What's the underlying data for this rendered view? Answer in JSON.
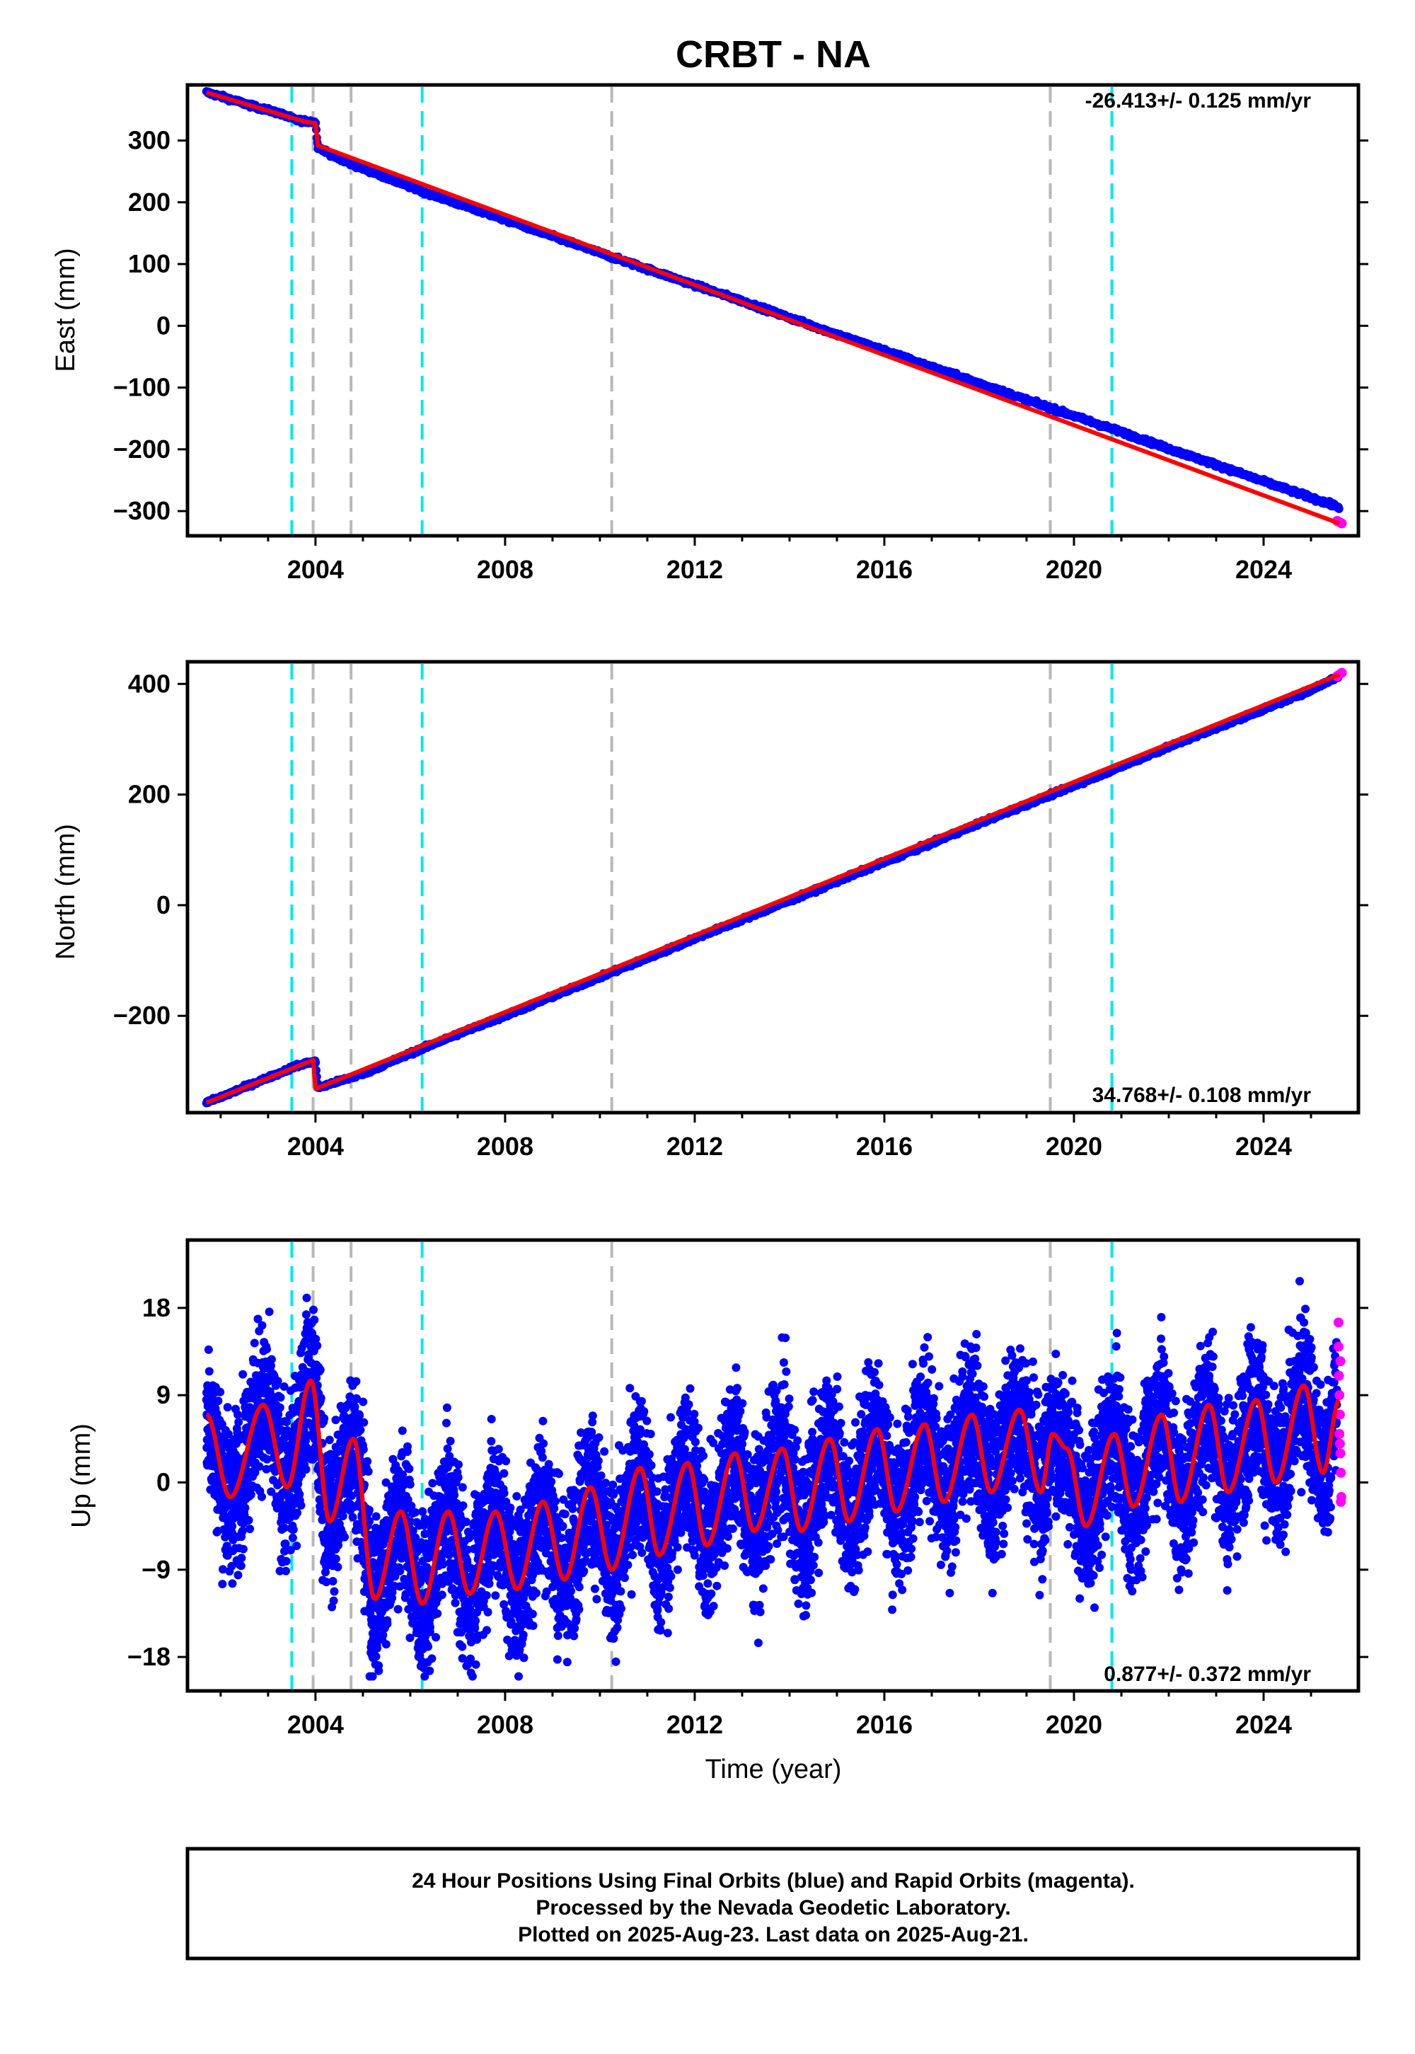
{
  "chart_data": [
    {
      "type": "scatter",
      "panel": "east",
      "title": "CRBT - NA",
      "ylabel": "East (mm)",
      "xlabel": "",
      "xlim": [
        2001.3,
        2026.0
      ],
      "ylim": [
        -340,
        390
      ],
      "x_ticks": [
        2004,
        2008,
        2012,
        2016,
        2020,
        2024
      ],
      "y_ticks": [
        300,
        200,
        100,
        0,
        -100,
        -200,
        -300
      ],
      "y_tick_labels": [
        "300",
        "200",
        "100",
        "0",
        "−100",
        "−200",
        "−300"
      ],
      "rate_label": "-26.413+/- 0.125 mm/yr",
      "rate_position": "top-right",
      "series": [
        {
          "role": "final_orbits",
          "color": "#0000ff",
          "x": [
            2001.7,
            2002.2,
            2002.7,
            2003.2,
            2003.6,
            2004.0,
            2004.05,
            2004.5,
            2005.0,
            2005.5,
            2006.0,
            2007.0,
            2008.0,
            2009.0,
            2010.0,
            2011.0,
            2012.0,
            2013.0,
            2014.0,
            2015.0,
            2016.0,
            2017.0,
            2018.0,
            2019.0,
            2020.0,
            2021.0,
            2022.0,
            2023.0,
            2024.0,
            2025.0,
            2025.6
          ],
          "y": [
            378,
            367,
            355,
            345,
            333,
            330,
            290,
            270,
            255,
            240,
            225,
            198,
            172,
            145,
            118,
            92,
            66,
            40,
            13,
            -14,
            -40,
            -67,
            -93,
            -120,
            -146,
            -172,
            -199,
            -225,
            -252,
            -278,
            -294
          ]
        },
        {
          "role": "rapid_orbits",
          "color": "#ff00ff",
          "x": [
            2025.55,
            2025.6,
            2025.65
          ],
          "y": [
            -316,
            -318,
            -320
          ]
        },
        {
          "role": "model_fit",
          "color": "#ff0000",
          "x": [
            2001.7,
            2003.8,
            2004.0,
            2004.05,
            2025.6
          ],
          "y": [
            378,
            330,
            328,
            292,
            -320
          ]
        }
      ]
    },
    {
      "type": "scatter",
      "panel": "north",
      "ylabel": "North (mm)",
      "xlabel": "",
      "xlim": [
        2001.3,
        2026.0
      ],
      "ylim": [
        -375,
        440
      ],
      "x_ticks": [
        2004,
        2008,
        2012,
        2016,
        2020,
        2024
      ],
      "y_ticks": [
        400,
        200,
        0,
        -200
      ],
      "y_tick_labels": [
        "400",
        "200",
        "0",
        "−200"
      ],
      "rate_label": "34.768+/- 0.108 mm/yr",
      "rate_position": "bottom-right",
      "series": [
        {
          "role": "final_orbits",
          "color": "#0000ff",
          "x": [
            2001.7,
            2002.2,
            2002.7,
            2003.2,
            2003.6,
            2004.0,
            2004.05,
            2004.5,
            2005.0,
            2006.0,
            2007.0,
            2008.0,
            2009.0,
            2010.0,
            2011.0,
            2012.0,
            2013.0,
            2014.0,
            2015.0,
            2016.0,
            2017.0,
            2018.0,
            2019.0,
            2020.0,
            2021.0,
            2022.0,
            2023.0,
            2024.0,
            2025.0,
            2025.6
          ],
          "y": [
            -357,
            -340,
            -322,
            -305,
            -290,
            -282,
            -330,
            -318,
            -305,
            -268,
            -233,
            -200,
            -165,
            -130,
            -96,
            -60,
            -26,
            8,
            43,
            78,
            112,
            148,
            182,
            216,
            251,
            286,
            320,
            354,
            389,
            415
          ]
        },
        {
          "role": "rapid_orbits",
          "color": "#ff00ff",
          "x": [
            2025.55,
            2025.6,
            2025.65
          ],
          "y": [
            414,
            417,
            420
          ]
        },
        {
          "role": "model_fit",
          "color": "#ff0000",
          "x": [
            2001.7,
            2003.95,
            2004.0,
            2025.6
          ],
          "y": [
            -357,
            -280,
            -332,
            417
          ]
        }
      ]
    },
    {
      "type": "scatter",
      "panel": "up",
      "ylabel": "Up (mm)",
      "xlabel": "Time (year)",
      "xlim": [
        2001.3,
        2026.0
      ],
      "ylim": [
        -21.5,
        25
      ],
      "x_ticks": [
        2004,
        2008,
        2012,
        2016,
        2020,
        2024
      ],
      "y_ticks": [
        18,
        9,
        0,
        -9,
        -18
      ],
      "y_tick_labels": [
        "18",
        "9",
        "0",
        "−9",
        "−18"
      ],
      "rate_label": "0.877+/- 0.372 mm/yr",
      "rate_position": "bottom-right",
      "annual_fit": {
        "color": "#ff0000",
        "x": [
          2001.7,
          2002.2,
          2002.9,
          2003.4,
          2003.9,
          2004.3,
          2004.8,
          2005.25,
          2005.8,
          2006.25,
          2006.8,
          2007.25,
          2007.8,
          2008.25,
          2008.8,
          2009.25,
          2009.8,
          2010.25,
          2010.85,
          2011.25,
          2011.85,
          2012.25,
          2012.85,
          2013.25,
          2013.85,
          2014.25,
          2014.85,
          2015.25,
          2015.85,
          2016.25,
          2016.85,
          2017.25,
          2017.85,
          2018.25,
          2018.85,
          2019.3,
          2019.55,
          2019.85,
          2020.25,
          2020.85,
          2021.25,
          2021.85,
          2022.25,
          2022.85,
          2023.25,
          2023.85,
          2024.25,
          2024.85,
          2025.25,
          2025.6
        ],
        "y": [
          7,
          -1.5,
          8,
          -0.5,
          10.5,
          -4,
          4.5,
          -12,
          -3,
          -12.5,
          -3,
          -11.5,
          -3,
          -11,
          -2,
          -10,
          -0.5,
          -9,
          1.5,
          -7.5,
          2,
          -6.5,
          3,
          -5,
          3.5,
          -5,
          4.5,
          -4,
          5.5,
          -3,
          6,
          -2,
          7,
          -1,
          7.5,
          -1,
          5,
          3.5,
          -4.5,
          5,
          -2.5,
          7,
          -2,
          8,
          -1,
          8.5,
          0,
          10,
          1,
          8.5
        ]
      },
      "scatter_spread": 4.5,
      "rapid_orbits": {
        "color": "#ff00ff",
        "x": [
          2025.58,
          2025.58,
          2025.59,
          2025.6,
          2025.61,
          2025.6,
          2025.62,
          2025.63,
          2025.64,
          2025.62,
          2025.61,
          2025.63
        ],
        "y": [
          16.5,
          14,
          11,
          9,
          7,
          5,
          3,
          1,
          -1.5,
          12.5,
          4,
          -2
        ]
      },
      "scatter_color": "#0000ff"
    }
  ],
  "event_lines": {
    "cyan": {
      "color": "#00e8f0",
      "years": [
        2003.5,
        2006.25,
        2020.8
      ]
    },
    "gray": {
      "color": "#b8b8b8",
      "years": [
        2003.95,
        2004.75,
        2010.25,
        2019.5
      ]
    }
  },
  "footer": {
    "line1": "24 Hour Positions Using Final Orbits (blue) and Rapid Orbits (magenta).",
    "line2": "Processed by the Nevada Geodetic Laboratory.",
    "line3": "Plotted on 2025-Aug-23. Last data on 2025-Aug-21."
  }
}
